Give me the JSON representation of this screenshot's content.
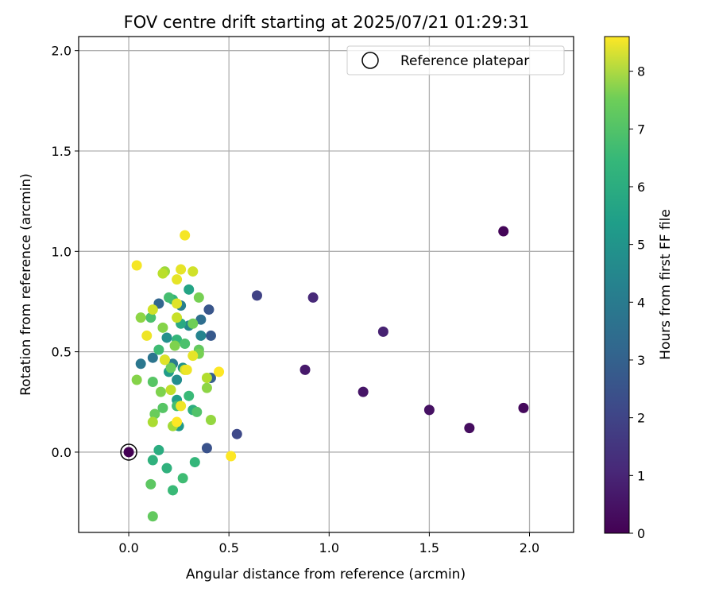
{
  "chart_data": {
    "type": "scatter",
    "title": "FOV centre drift starting at 2025/07/21 01:29:31",
    "xlabel": "Angular distance from reference (arcmin)",
    "ylabel": "Rotation from reference (arcmin)",
    "xlim": [
      -0.25,
      2.22
    ],
    "ylim": [
      -0.4,
      2.07
    ],
    "xticks": [
      0.0,
      0.5,
      1.0,
      1.5,
      2.0
    ],
    "yticks": [
      0.0,
      0.5,
      1.0,
      1.5,
      2.0
    ],
    "xtick_labels": [
      "0.0",
      "0.5",
      "1.0",
      "1.5",
      "2.0"
    ],
    "ytick_labels": [
      "0.0",
      "0.5",
      "1.0",
      "1.5",
      "2.0"
    ],
    "grid": true,
    "legend": {
      "position": "top-right",
      "label": "Reference platepar"
    },
    "reference_point": {
      "x": 0.0,
      "y": 0.0,
      "hours": 0.0
    },
    "colorbar": {
      "label": "Hours from first FF file",
      "min": 0,
      "max": 8.6,
      "ticks": [
        0,
        1,
        2,
        3,
        4,
        5,
        6,
        7,
        8
      ],
      "tick_labels": [
        "0",
        "1",
        "2",
        "3",
        "4",
        "5",
        "6",
        "7",
        "8"
      ],
      "colormap": "viridis"
    },
    "points": [
      {
        "x": 1.87,
        "y": 1.1,
        "h": 0.1
      },
      {
        "x": 1.97,
        "y": 0.22,
        "h": 0.2
      },
      {
        "x": 1.7,
        "y": 0.12,
        "h": 0.3
      },
      {
        "x": 1.5,
        "y": 0.21,
        "h": 0.4
      },
      {
        "x": 1.17,
        "y": 0.3,
        "h": 0.5
      },
      {
        "x": 0.88,
        "y": 0.41,
        "h": 0.6
      },
      {
        "x": 1.27,
        "y": 0.6,
        "h": 0.8
      },
      {
        "x": 0.92,
        "y": 0.77,
        "h": 1.0
      },
      {
        "x": 0.64,
        "y": 0.78,
        "h": 1.7
      },
      {
        "x": 0.54,
        "y": 0.09,
        "h": 1.9
      },
      {
        "x": 0.39,
        "y": 0.02,
        "h": 2.2
      },
      {
        "x": 0.4,
        "y": 0.71,
        "h": 2.3
      },
      {
        "x": 0.41,
        "y": 0.58,
        "h": 2.4
      },
      {
        "x": 0.41,
        "y": 0.37,
        "h": 2.6
      },
      {
        "x": 0.15,
        "y": 0.74,
        "h": 2.8
      },
      {
        "x": 0.36,
        "y": 0.66,
        "h": 3.1
      },
      {
        "x": 0.12,
        "y": 0.47,
        "h": 3.3
      },
      {
        "x": 0.06,
        "y": 0.44,
        "h": 3.4
      },
      {
        "x": 0.22,
        "y": 0.44,
        "h": 3.6
      },
      {
        "x": 0.26,
        "y": 0.73,
        "h": 3.7
      },
      {
        "x": 0.36,
        "y": 0.58,
        "h": 3.9
      },
      {
        "x": 0.3,
        "y": 0.63,
        "h": 4.0
      },
      {
        "x": 0.24,
        "y": 0.36,
        "h": 4.2
      },
      {
        "x": 0.19,
        "y": 0.57,
        "h": 4.3
      },
      {
        "x": 0.27,
        "y": 0.42,
        "h": 4.4
      },
      {
        "x": 0.25,
        "y": 0.13,
        "h": 4.6
      },
      {
        "x": 0.2,
        "y": 0.4,
        "h": 4.7
      },
      {
        "x": 0.24,
        "y": 0.26,
        "h": 4.8
      },
      {
        "x": 0.3,
        "y": 0.81,
        "h": 5.0
      },
      {
        "x": 0.18,
        "y": 0.46,
        "h": 5.1
      },
      {
        "x": 0.26,
        "y": 0.64,
        "h": 5.2
      },
      {
        "x": 0.15,
        "y": 0.01,
        "h": 5.3
      },
      {
        "x": 0.32,
        "y": 0.21,
        "h": 5.4
      },
      {
        "x": 0.12,
        "y": -0.04,
        "h": 5.5
      },
      {
        "x": 0.19,
        "y": -0.08,
        "h": 5.5
      },
      {
        "x": 0.22,
        "y": 0.76,
        "h": 5.6
      },
      {
        "x": 0.33,
        "y": -0.05,
        "h": 5.7
      },
      {
        "x": 0.24,
        "y": 0.56,
        "h": 5.7
      },
      {
        "x": 0.22,
        "y": -0.19,
        "h": 5.8
      },
      {
        "x": 0.3,
        "y": 0.28,
        "h": 5.8
      },
      {
        "x": 0.27,
        "y": -0.13,
        "h": 5.9
      },
      {
        "x": 0.15,
        "y": 0.51,
        "h": 5.9
      },
      {
        "x": 0.24,
        "y": 0.23,
        "h": 6.0
      },
      {
        "x": 0.2,
        "y": 0.77,
        "h": 6.0
      },
      {
        "x": 0.28,
        "y": 0.54,
        "h": 6.1
      },
      {
        "x": 0.11,
        "y": 0.67,
        "h": 6.1
      },
      {
        "x": 0.34,
        "y": 0.2,
        "h": 6.2
      },
      {
        "x": 0.17,
        "y": 0.22,
        "h": 6.3
      },
      {
        "x": 0.12,
        "y": 0.35,
        "h": 6.3
      },
      {
        "x": 0.11,
        "y": -0.16,
        "h": 6.4
      },
      {
        "x": 0.12,
        "y": -0.32,
        "h": 6.5
      },
      {
        "x": 0.35,
        "y": 0.51,
        "h": 6.5
      },
      {
        "x": 0.21,
        "y": 0.42,
        "h": 6.6
      },
      {
        "x": 0.13,
        "y": 0.19,
        "h": 6.6
      },
      {
        "x": 0.32,
        "y": 0.64,
        "h": 6.7
      },
      {
        "x": 0.35,
        "y": 0.77,
        "h": 6.8
      },
      {
        "x": 0.35,
        "y": 0.49,
        "h": 6.8
      },
      {
        "x": 0.16,
        "y": 0.3,
        "h": 6.9
      },
      {
        "x": 0.23,
        "y": 0.53,
        "h": 6.9
      },
      {
        "x": 0.17,
        "y": 0.62,
        "h": 7.0
      },
      {
        "x": 0.04,
        "y": 0.36,
        "h": 7.0
      },
      {
        "x": 0.06,
        "y": 0.67,
        "h": 7.1
      },
      {
        "x": 0.39,
        "y": 0.32,
        "h": 7.1
      },
      {
        "x": 0.41,
        "y": 0.16,
        "h": 7.2
      },
      {
        "x": 0.18,
        "y": 0.9,
        "h": 7.3
      },
      {
        "x": 0.22,
        "y": 0.13,
        "h": 7.4
      },
      {
        "x": 0.12,
        "y": 0.15,
        "h": 7.5
      },
      {
        "x": 0.39,
        "y": 0.37,
        "h": 7.6
      },
      {
        "x": 0.17,
        "y": 0.89,
        "h": 7.7
      },
      {
        "x": 0.21,
        "y": 0.31,
        "h": 7.8
      },
      {
        "x": 0.24,
        "y": 0.67,
        "h": 7.9
      },
      {
        "x": 0.12,
        "y": 0.71,
        "h": 8.0
      },
      {
        "x": 0.32,
        "y": 0.9,
        "h": 8.0
      },
      {
        "x": 0.28,
        "y": 0.41,
        "h": 8.1
      },
      {
        "x": 0.18,
        "y": 0.46,
        "h": 8.2
      },
      {
        "x": 0.24,
        "y": 0.74,
        "h": 8.2
      },
      {
        "x": 0.26,
        "y": 0.91,
        "h": 8.3
      },
      {
        "x": 0.24,
        "y": 0.86,
        "h": 8.3
      },
      {
        "x": 0.32,
        "y": 0.48,
        "h": 8.3
      },
      {
        "x": 0.09,
        "y": 0.58,
        "h": 8.4
      },
      {
        "x": 0.26,
        "y": 0.23,
        "h": 8.4
      },
      {
        "x": 0.29,
        "y": 0.41,
        "h": 8.4
      },
      {
        "x": 0.04,
        "y": 0.93,
        "h": 8.5
      },
      {
        "x": 0.28,
        "y": 1.08,
        "h": 8.5
      },
      {
        "x": 0.45,
        "y": 0.4,
        "h": 8.6
      },
      {
        "x": 0.51,
        "y": -0.02,
        "h": 8.6
      },
      {
        "x": 0.24,
        "y": 0.15,
        "h": 8.6
      }
    ]
  }
}
